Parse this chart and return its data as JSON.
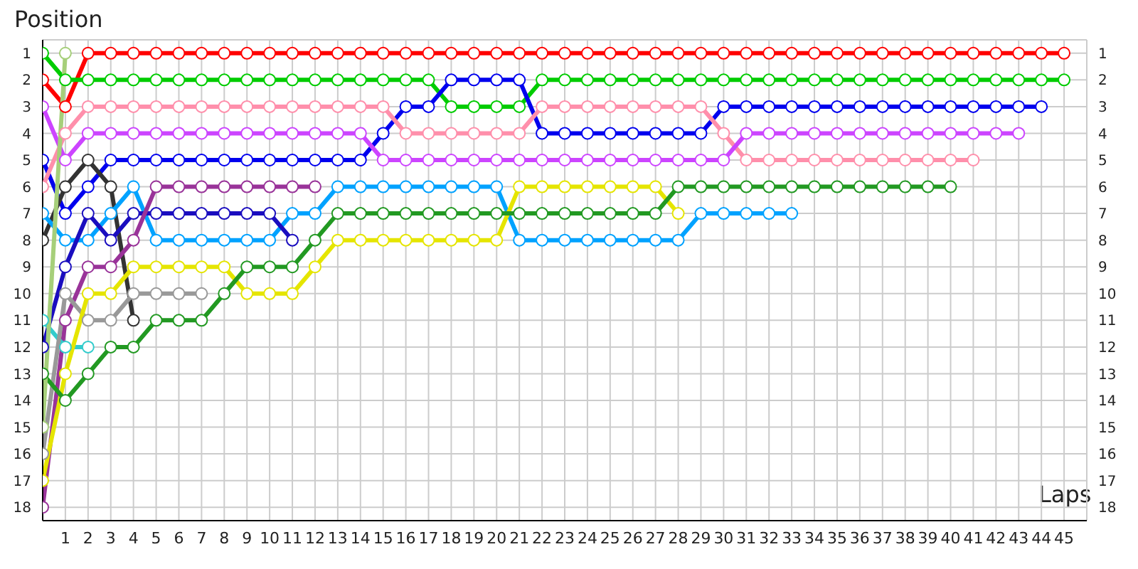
{
  "chart_data": {
    "type": "line",
    "xlabel": "Laps",
    "ylabel": "Position",
    "x": [
      0,
      1,
      2,
      3,
      4,
      5,
      6,
      7,
      8,
      9,
      10,
      11,
      12,
      13,
      14,
      15,
      16,
      17,
      18,
      19,
      20,
      21,
      22,
      23,
      24,
      25,
      26,
      27,
      28,
      29,
      30,
      31,
      32,
      33,
      34,
      35,
      36,
      37,
      38,
      39,
      40,
      41,
      42,
      43,
      44,
      45
    ],
    "xlim": [
      0,
      46
    ],
    "xticks": [
      {
        "value": 0,
        "label": null
      },
      1,
      2,
      3,
      4,
      5,
      6,
      7,
      8,
      9,
      10,
      11,
      12,
      13,
      14,
      15,
      16,
      17,
      18,
      19,
      20,
      21,
      22,
      23,
      24,
      25,
      26,
      27,
      28,
      29,
      30,
      31,
      32,
      33,
      34,
      35,
      36,
      37,
      38,
      39,
      40,
      41,
      42,
      43,
      44,
      45
    ],
    "ylim": [
      18.5,
      0.5
    ],
    "yticks": [
      1,
      2,
      3,
      4,
      5,
      6,
      7,
      8,
      9,
      10,
      11,
      12,
      13,
      14,
      15,
      16,
      17,
      18
    ],
    "y2lim": [
      18.5,
      0.5
    ],
    "y2ticks": [
      1,
      2,
      3,
      4,
      5,
      6,
      7,
      8,
      9,
      10,
      11,
      12,
      13,
      14,
      15,
      16,
      17,
      18
    ],
    "grid": true,
    "marker": "circle",
    "line_style": "solid",
    "series": [
      {
        "color": "#ff0000",
        "values": [
          2,
          3,
          1,
          1,
          1,
          1,
          1,
          1,
          1,
          1,
          1,
          1,
          1,
          1,
          1,
          1,
          1,
          1,
          1,
          1,
          1,
          1,
          1,
          1,
          1,
          1,
          1,
          1,
          1,
          1,
          1,
          1,
          1,
          1,
          1,
          1,
          1,
          1,
          1,
          1,
          1,
          1,
          1,
          1,
          1,
          1
        ]
      },
      {
        "color": "#00cc00",
        "values": [
          1,
          2,
          2,
          2,
          2,
          2,
          2,
          2,
          2,
          2,
          2,
          2,
          2,
          2,
          2,
          2,
          2,
          2,
          3,
          3,
          3,
          3,
          2,
          2,
          2,
          2,
          2,
          2,
          2,
          2,
          2,
          2,
          2,
          2,
          2,
          2,
          2,
          2,
          2,
          2,
          2,
          2,
          2,
          2,
          2,
          2
        ]
      },
      {
        "color": "#0000ee",
        "values": [
          5,
          7,
          6,
          5,
          5,
          5,
          5,
          5,
          5,
          5,
          5,
          5,
          5,
          5,
          5,
          4,
          3,
          3,
          2,
          2,
          2,
          2,
          4,
          4,
          4,
          4,
          4,
          4,
          4,
          4,
          3,
          3,
          3,
          3,
          3,
          3,
          3,
          3,
          3,
          3,
          3,
          3,
          3,
          3,
          3,
          null
        ]
      },
      {
        "color": "#ff8fab",
        "values": [
          6,
          4,
          3,
          3,
          3,
          3,
          3,
          3,
          3,
          3,
          3,
          3,
          3,
          3,
          3,
          3,
          4,
          4,
          4,
          4,
          4,
          4,
          3,
          3,
          3,
          3,
          3,
          3,
          3,
          3,
          4,
          5,
          5,
          5,
          5,
          5,
          5,
          5,
          5,
          5,
          5,
          5,
          null,
          null,
          null,
          null
        ]
      },
      {
        "color": "#cc44ff",
        "values": [
          3,
          5,
          4,
          4,
          4,
          4,
          4,
          4,
          4,
          4,
          4,
          4,
          4,
          4,
          4,
          5,
          5,
          5,
          5,
          5,
          5,
          5,
          5,
          5,
          5,
          5,
          5,
          5,
          5,
          5,
          5,
          4,
          4,
          4,
          4,
          4,
          4,
          4,
          4,
          4,
          4,
          4,
          4,
          4,
          null,
          null
        ]
      },
      {
        "color": "#333333",
        "values": [
          8,
          6,
          5,
          6,
          11,
          null,
          null,
          null,
          null,
          null,
          null,
          null,
          null,
          null,
          null,
          null,
          null,
          null,
          null,
          null,
          null,
          null,
          null,
          null,
          null,
          null,
          null,
          null,
          null,
          null,
          null,
          null,
          null,
          null,
          null,
          null,
          null,
          null,
          null,
          null,
          null,
          null,
          null,
          null,
          null,
          null
        ]
      },
      {
        "color": "#00a2ff",
        "values": [
          7,
          8,
          8,
          7,
          6,
          8,
          8,
          8,
          8,
          8,
          8,
          7,
          7,
          6,
          6,
          6,
          6,
          6,
          6,
          6,
          6,
          8,
          8,
          8,
          8,
          8,
          8,
          8,
          8,
          7,
          7,
          7,
          7,
          7,
          null,
          null,
          null,
          null,
          null,
          null,
          null,
          null,
          null,
          null,
          null,
          null
        ]
      },
      {
        "color": "#1a0dbf",
        "values": [
          12,
          9,
          7,
          8,
          7,
          7,
          7,
          7,
          7,
          7,
          7,
          8,
          null,
          null,
          null,
          null,
          null,
          null,
          null,
          null,
          null,
          null,
          null,
          null,
          null,
          null,
          null,
          null,
          null,
          null,
          null,
          null,
          null,
          null,
          null,
          null,
          null,
          null,
          null,
          null,
          null,
          null,
          null,
          null,
          null,
          null
        ]
      },
      {
        "color": "#993399",
        "values": [
          18,
          11,
          9,
          9,
          8,
          6,
          6,
          6,
          6,
          6,
          6,
          6,
          6,
          null,
          null,
          null,
          null,
          null,
          null,
          null,
          null,
          null,
          null,
          null,
          null,
          null,
          null,
          null,
          null,
          null,
          null,
          null,
          null,
          null,
          null,
          null,
          null,
          null,
          null,
          null,
          null,
          null,
          null,
          null,
          null,
          null
        ]
      },
      {
        "color": "#33cccc",
        "values": [
          11,
          12,
          12,
          null,
          null,
          null,
          null,
          null,
          null,
          null,
          null,
          null,
          null,
          null,
          null,
          null,
          null,
          null,
          null,
          null,
          null,
          null,
          null,
          null,
          null,
          null,
          null,
          null,
          null,
          null,
          null,
          null,
          null,
          null,
          null,
          null,
          null,
          null,
          null,
          null,
          null,
          null,
          null,
          null,
          null,
          null
        ]
      },
      {
        "color": "#999999",
        "values": [
          16,
          10,
          11,
          11,
          10,
          10,
          10,
          10,
          null,
          null,
          null,
          null,
          null,
          null,
          null,
          null,
          null,
          null,
          null,
          null,
          null,
          null,
          null,
          null,
          null,
          null,
          null,
          null,
          null,
          null,
          null,
          null,
          null,
          null,
          null,
          null,
          null,
          null,
          null,
          null,
          null,
          null,
          null,
          null,
          null,
          null
        ]
      },
      {
        "color": "#e5e500",
        "values": [
          17,
          13,
          10,
          10,
          9,
          9,
          9,
          9,
          9,
          10,
          10,
          10,
          9,
          8,
          8,
          8,
          8,
          8,
          8,
          8,
          8,
          6,
          6,
          6,
          6,
          6,
          6,
          6,
          7,
          null,
          null,
          null,
          null,
          null,
          null,
          null,
          null,
          null,
          null,
          null,
          null,
          null,
          null,
          null,
          null,
          null
        ]
      },
      {
        "color": "#229922",
        "values": [
          13,
          14,
          13,
          12,
          12,
          11,
          11,
          11,
          10,
          9,
          9,
          9,
          8,
          7,
          7,
          7,
          7,
          7,
          7,
          7,
          7,
          7,
          7,
          7,
          7,
          7,
          7,
          7,
          6,
          6,
          6,
          6,
          6,
          6,
          6,
          6,
          6,
          6,
          6,
          6,
          6,
          null,
          null,
          null,
          null,
          null
        ]
      },
      {
        "color": "#a6cf7a",
        "values": [
          15,
          1,
          null,
          null,
          null,
          null,
          null,
          null,
          null,
          null,
          null,
          null,
          null,
          null,
          null,
          null,
          null,
          null,
          null,
          null,
          null,
          null,
          null,
          null,
          null,
          null,
          null,
          null,
          null,
          null,
          null,
          null,
          null,
          null,
          null,
          null,
          null,
          null,
          null,
          null,
          null,
          null,
          null,
          null,
          null,
          null
        ]
      }
    ]
  }
}
